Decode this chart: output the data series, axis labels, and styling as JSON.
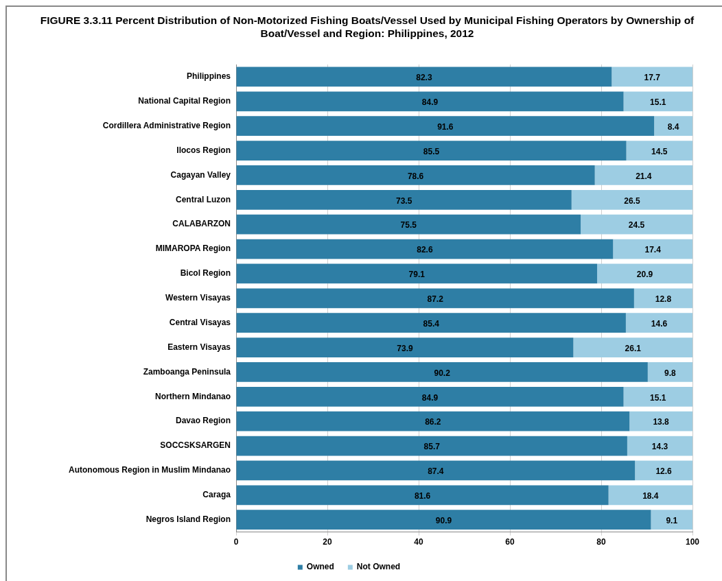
{
  "chart_data": {
    "type": "bar",
    "orientation": "horizontal",
    "stacked": true,
    "title": "FIGURE 3.3.11  Percent Distribution of Non-Motorized Fishing Boats/Vessel Used by Municipal Fishing Operators by Ownership of Boat/Vessel and Region: Philippines, 2012",
    "categories": [
      "Philippines",
      "National Capital Region",
      "Cordillera Administrative Region",
      "Ilocos Region",
      "Cagayan Valley",
      "Central Luzon",
      "CALABARZON",
      "MIMAROPA Region",
      "Bicol Region",
      "Western Visayas",
      "Central Visayas",
      "Eastern Visayas",
      "Zamboanga Peninsula",
      "Northern Mindanao",
      "Davao Region",
      "SOCCSKSARGEN",
      "Autonomous Region in Muslim Mindanao",
      "Caraga",
      "Negros Island Region"
    ],
    "series": [
      {
        "name": "Owned",
        "color": "#2e7ea5",
        "values": [
          82.3,
          84.9,
          91.6,
          85.5,
          78.6,
          73.5,
          75.5,
          82.6,
          79.1,
          87.2,
          85.4,
          73.9,
          90.2,
          84.9,
          86.2,
          85.7,
          87.4,
          81.6,
          90.9
        ]
      },
      {
        "name": "Not Owned",
        "color": "#9dcde3",
        "values": [
          17.7,
          15.1,
          8.4,
          14.5,
          21.4,
          26.5,
          24.5,
          17.4,
          20.9,
          12.8,
          14.6,
          26.1,
          9.8,
          15.1,
          13.8,
          14.3,
          12.6,
          18.4,
          9.1
        ]
      }
    ],
    "xlim": [
      0,
      100
    ],
    "xticks": [
      0,
      20,
      40,
      60,
      80,
      100
    ],
    "grid": "x",
    "legend": "bottom",
    "data_labels": true
  }
}
